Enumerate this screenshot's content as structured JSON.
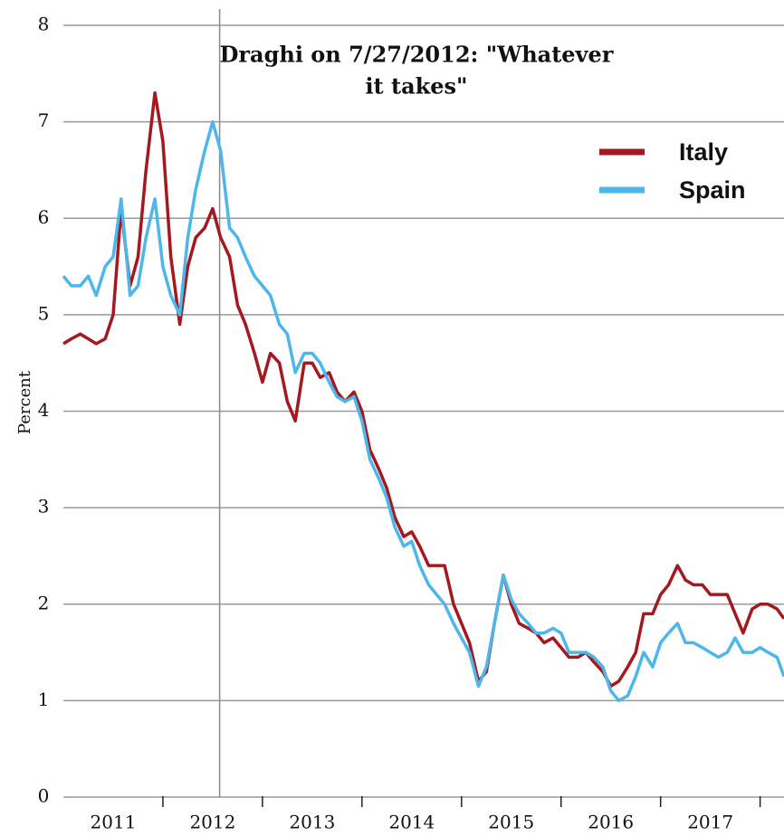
{
  "chart_data": {
    "type": "line",
    "ylabel": "Percent",
    "annotation": {
      "lines": [
        "Draghi on 7/27/2012: \"Whatever",
        "it takes\""
      ],
      "x": 2012.57
    },
    "x": [
      2011.0,
      2011.08,
      2011.17,
      2011.25,
      2011.33,
      2011.42,
      2011.5,
      2011.58,
      2011.67,
      2011.75,
      2011.83,
      2011.92,
      2012.0,
      2012.08,
      2012.17,
      2012.25,
      2012.33,
      2012.42,
      2012.5,
      2012.58,
      2012.67,
      2012.75,
      2012.83,
      2012.92,
      2013.0,
      2013.08,
      2013.17,
      2013.25,
      2013.33,
      2013.42,
      2013.5,
      2013.58,
      2013.67,
      2013.75,
      2013.83,
      2013.92,
      2014.0,
      2014.08,
      2014.17,
      2014.25,
      2014.33,
      2014.42,
      2014.5,
      2014.58,
      2014.67,
      2014.75,
      2014.83,
      2014.92,
      2015.0,
      2015.08,
      2015.17,
      2015.25,
      2015.33,
      2015.42,
      2015.5,
      2015.58,
      2015.67,
      2015.75,
      2015.83,
      2015.92,
      2016.0,
      2016.08,
      2016.17,
      2016.25,
      2016.33,
      2016.42,
      2016.5,
      2016.58,
      2016.67,
      2016.75,
      2016.83,
      2016.92,
      2017.0,
      2017.08,
      2017.17,
      2017.25,
      2017.33,
      2017.42,
      2017.5,
      2017.58,
      2017.67,
      2017.75,
      2017.83,
      2017.92,
      2018.0,
      2018.08,
      2018.17,
      2018.24
    ],
    "series": [
      {
        "name": "Italy",
        "color": "#a3191f",
        "values": [
          4.7,
          4.75,
          4.8,
          4.75,
          4.7,
          4.75,
          5.0,
          6.1,
          5.3,
          5.6,
          6.5,
          7.3,
          6.8,
          5.6,
          4.9,
          5.5,
          5.8,
          5.9,
          6.1,
          5.8,
          5.6,
          5.1,
          4.9,
          4.6,
          4.3,
          4.6,
          4.5,
          4.1,
          3.9,
          4.5,
          4.5,
          4.35,
          4.4,
          4.2,
          4.1,
          4.2,
          4.0,
          3.6,
          3.4,
          3.2,
          2.9,
          2.7,
          2.75,
          2.6,
          2.4,
          2.4,
          2.4,
          2.0,
          1.8,
          1.6,
          1.2,
          1.3,
          1.8,
          2.3,
          2.0,
          1.8,
          1.75,
          1.7,
          1.6,
          1.65,
          1.55,
          1.45,
          1.45,
          1.5,
          1.4,
          1.3,
          1.15,
          1.2,
          1.35,
          1.5,
          1.9,
          1.9,
          2.1,
          2.2,
          2.4,
          2.25,
          2.2,
          2.2,
          2.1,
          2.1,
          2.1,
          1.9,
          1.7,
          1.95,
          2.0,
          2.0,
          1.95,
          1.85
        ]
      },
      {
        "name": "Spain",
        "color": "#4db6ea",
        "values": [
          5.4,
          5.3,
          5.3,
          5.4,
          5.2,
          5.5,
          5.6,
          6.2,
          5.2,
          5.3,
          5.8,
          6.2,
          5.5,
          5.2,
          5.0,
          5.8,
          6.3,
          6.7,
          7.0,
          6.7,
          5.9,
          5.8,
          5.6,
          5.4,
          5.3,
          5.2,
          4.9,
          4.8,
          4.4,
          4.6,
          4.6,
          4.5,
          4.3,
          4.15,
          4.1,
          4.15,
          3.9,
          3.5,
          3.3,
          3.1,
          2.8,
          2.6,
          2.65,
          2.4,
          2.2,
          2.1,
          2.0,
          1.8,
          1.65,
          1.5,
          1.15,
          1.35,
          1.8,
          2.3,
          2.05,
          1.9,
          1.8,
          1.7,
          1.7,
          1.75,
          1.7,
          1.5,
          1.5,
          1.5,
          1.45,
          1.35,
          1.1,
          1.0,
          1.05,
          1.25,
          1.5,
          1.35,
          1.6,
          1.7,
          1.8,
          1.6,
          1.6,
          1.55,
          1.5,
          1.45,
          1.5,
          1.65,
          1.5,
          1.5,
          1.55,
          1.5,
          1.45,
          1.25
        ]
      }
    ],
    "xlim": [
      2011.0,
      2018.24
    ],
    "xticks": [
      {
        "value": 2011.5,
        "label": "2011"
      },
      {
        "value": 2012.5,
        "label": "2012"
      },
      {
        "value": 2013.5,
        "label": "2013"
      },
      {
        "value": 2014.5,
        "label": "2014"
      },
      {
        "value": 2015.5,
        "label": "2015"
      },
      {
        "value": 2016.5,
        "label": "2016"
      },
      {
        "value": 2017.5,
        "label": "2017"
      }
    ],
    "xminor_ticks": [
      2012,
      2013,
      2014,
      2015,
      2016,
      2017,
      2018
    ],
    "ylim": [
      0,
      8
    ],
    "yticks": [
      0,
      1,
      2,
      3,
      4,
      5,
      6,
      7,
      8
    ],
    "grid": true,
    "legend": "upper right"
  }
}
